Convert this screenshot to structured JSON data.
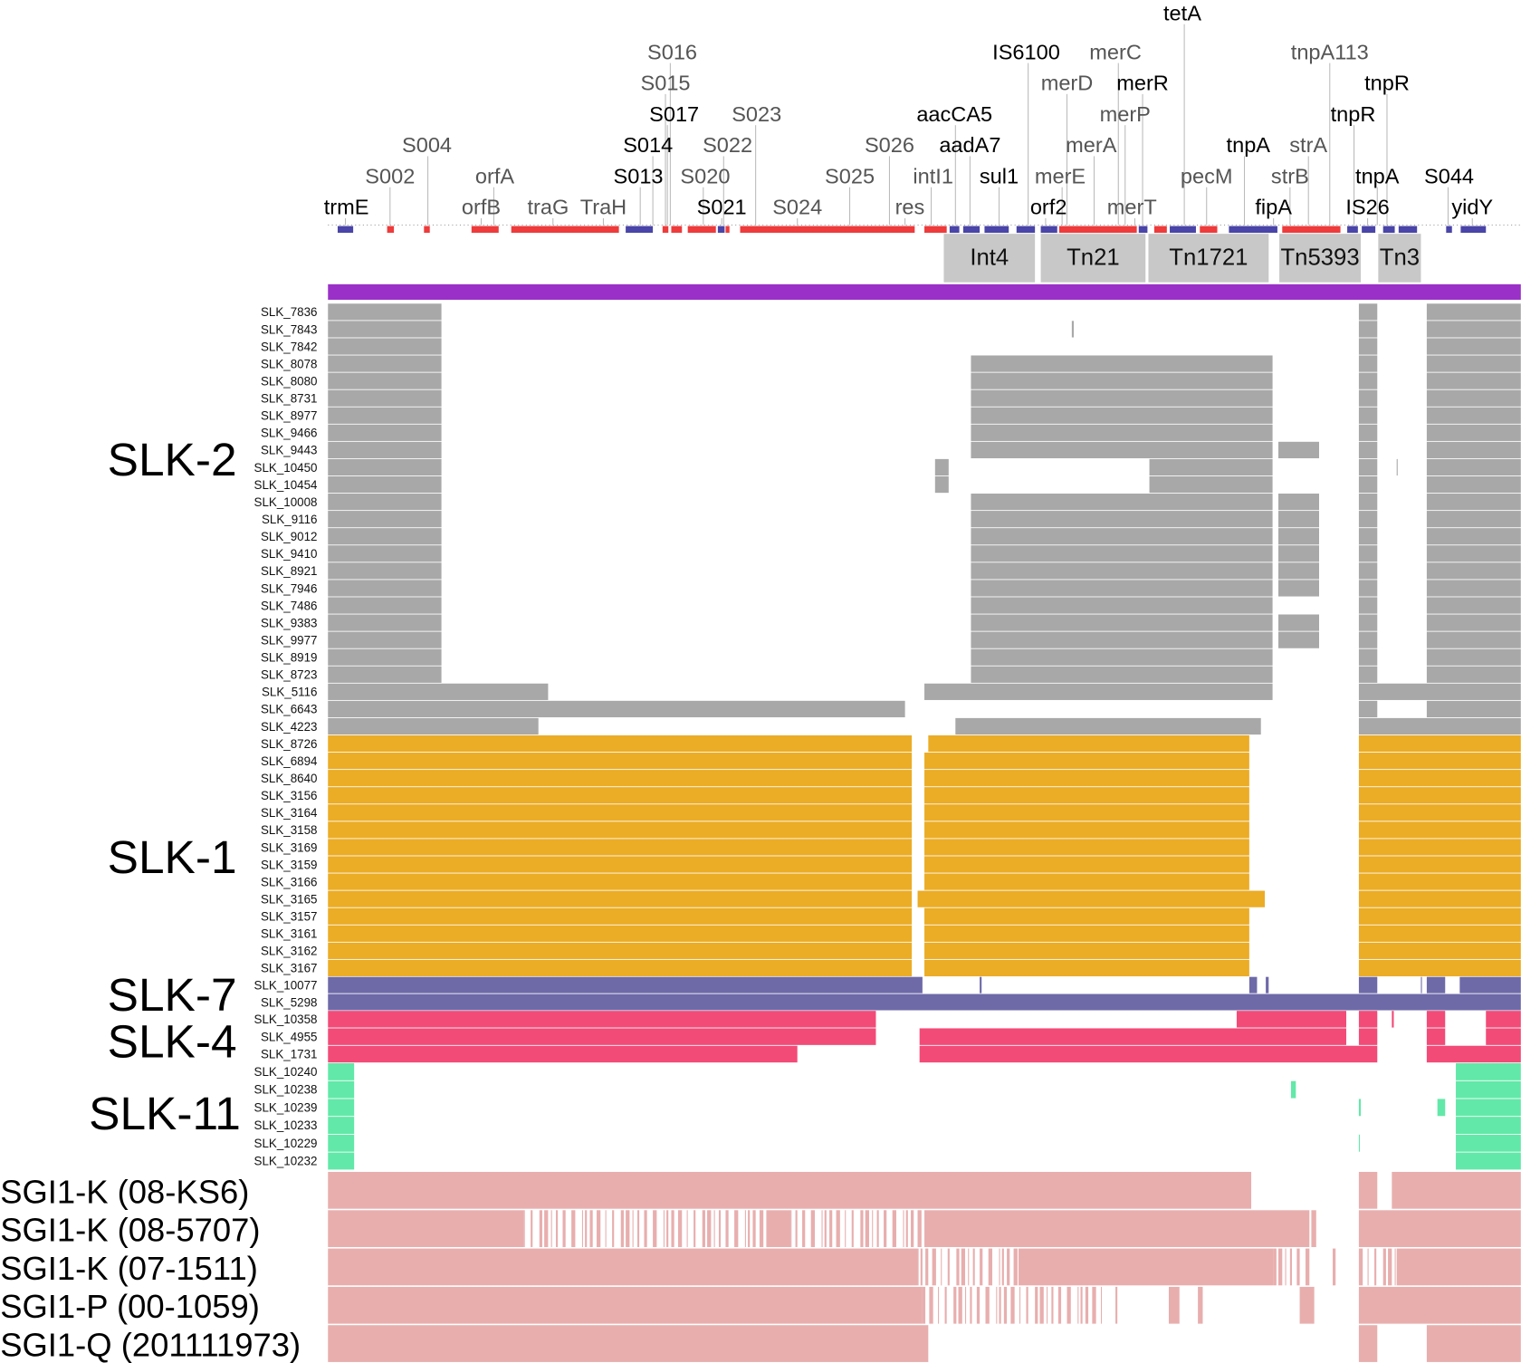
{
  "colors": {
    "gene_red": "#ee3b3b",
    "gene_blue": "#4a45a8",
    "mobile_box": "#c8c8c8",
    "reference_bar": "#9a30c8",
    "SLK-2": "#a8a8a8",
    "SLK-1": "#ebac26",
    "SLK-7": "#6e6aa8",
    "SLK-4": "#f24b78",
    "SLK-11": "#62e8a8",
    "SGI": "#e8aeae"
  },
  "gene_labels": [
    {
      "text": "trmE",
      "dark": true
    },
    {
      "text": "S002",
      "dark": false
    },
    {
      "text": "S004",
      "dark": false
    },
    {
      "text": "orfA",
      "dark": false
    },
    {
      "text": "orfB",
      "dark": false
    },
    {
      "text": "traG",
      "dark": false
    },
    {
      "text": "TraH",
      "dark": false
    },
    {
      "text": "S013",
      "dark": true
    },
    {
      "text": "S014",
      "dark": true
    },
    {
      "text": "S017",
      "dark": true
    },
    {
      "text": "S015",
      "dark": false
    },
    {
      "text": "S016",
      "dark": false
    },
    {
      "text": "S020",
      "dark": false
    },
    {
      "text": "S022",
      "dark": false
    },
    {
      "text": "S023",
      "dark": false
    },
    {
      "text": "S021",
      "dark": true
    },
    {
      "text": "S024",
      "dark": false
    },
    {
      "text": "S025",
      "dark": false
    },
    {
      "text": "S026",
      "dark": false
    },
    {
      "text": "res",
      "dark": false
    },
    {
      "text": "intI1",
      "dark": false
    },
    {
      "text": "aacCA5",
      "dark": true
    },
    {
      "text": "aadA7",
      "dark": true
    },
    {
      "text": "sul1",
      "dark": true
    },
    {
      "text": "IS6100",
      "dark": true
    },
    {
      "text": "orf2",
      "dark": true
    },
    {
      "text": "merE",
      "dark": false
    },
    {
      "text": "merD",
      "dark": false
    },
    {
      "text": "merA",
      "dark": false
    },
    {
      "text": "merC",
      "dark": false
    },
    {
      "text": "merT",
      "dark": false
    },
    {
      "text": "merP",
      "dark": false
    },
    {
      "text": "merR",
      "dark": true
    },
    {
      "text": "tetA",
      "dark": true
    },
    {
      "text": "pecM",
      "dark": false
    },
    {
      "text": "tnpA",
      "dark": true
    },
    {
      "text": "fipA",
      "dark": true
    },
    {
      "text": "strB",
      "dark": false
    },
    {
      "text": "strA",
      "dark": false
    },
    {
      "text": "tnpA113",
      "dark": false
    },
    {
      "text": "tnpR",
      "dark": true
    },
    {
      "text": "tnpR",
      "dark": true
    },
    {
      "text": "tnpA",
      "dark": true
    },
    {
      "text": "IS26",
      "dark": true
    },
    {
      "text": "S044",
      "dark": true
    },
    {
      "text": "yidY",
      "dark": true
    }
  ],
  "mobile_elements": [
    "Int4",
    "Tn21",
    "Tn1721",
    "Tn5393",
    "Tn3"
  ],
  "groups": [
    {
      "name": "SLK-2",
      "color_key": "SLK-2",
      "isolates": [
        "SLK_7836",
        "SLK_7843",
        "SLK_7842",
        "SLK_8078",
        "SLK_8080",
        "SLK_8731",
        "SLK_8977",
        "SLK_9466",
        "SLK_9443",
        "SLK_10450",
        "SLK_10454",
        "SLK_10008",
        "SLK_9116",
        "SLK_9012",
        "SLK_9410",
        "SLK_8921",
        "SLK_7946",
        "SLK_7486",
        "SLK_9383",
        "SLK_9977",
        "SLK_8919",
        "SLK_8723",
        "SLK_5116",
        "SLK_6643",
        "SLK_4223"
      ]
    },
    {
      "name": "SLK-1",
      "color_key": "SLK-1",
      "isolates": [
        "SLK_8726",
        "SLK_6894",
        "SLK_8640",
        "SLK_3156",
        "SLK_3164",
        "SLK_3158",
        "SLK_3169",
        "SLK_3159",
        "SLK_3166",
        "SLK_3165",
        "SLK_3157",
        "SLK_3161",
        "SLK_3162",
        "SLK_3167"
      ]
    },
    {
      "name": "SLK-7",
      "color_key": "SLK-7",
      "isolates": [
        "SLK_10077",
        "SLK_5298"
      ]
    },
    {
      "name": "SLK-4",
      "color_key": "SLK-4",
      "isolates": [
        "SLK_10358",
        "SLK_4955",
        "SLK_1731"
      ]
    },
    {
      "name": "SLK-11",
      "color_key": "SLK-11",
      "isolates": [
        "SLK_10240",
        "SLK_10238",
        "SLK_10239",
        "SLK_10233",
        "SLK_10229",
        "SLK_10232"
      ]
    }
  ],
  "references": [
    "SGI1-K (08-KS6)",
    "SGI1-K (08-5707)",
    "SGI1-K (07-1511)",
    "SGI1-P (00-1059)",
    "SGI1-Q (201111973)"
  ]
}
